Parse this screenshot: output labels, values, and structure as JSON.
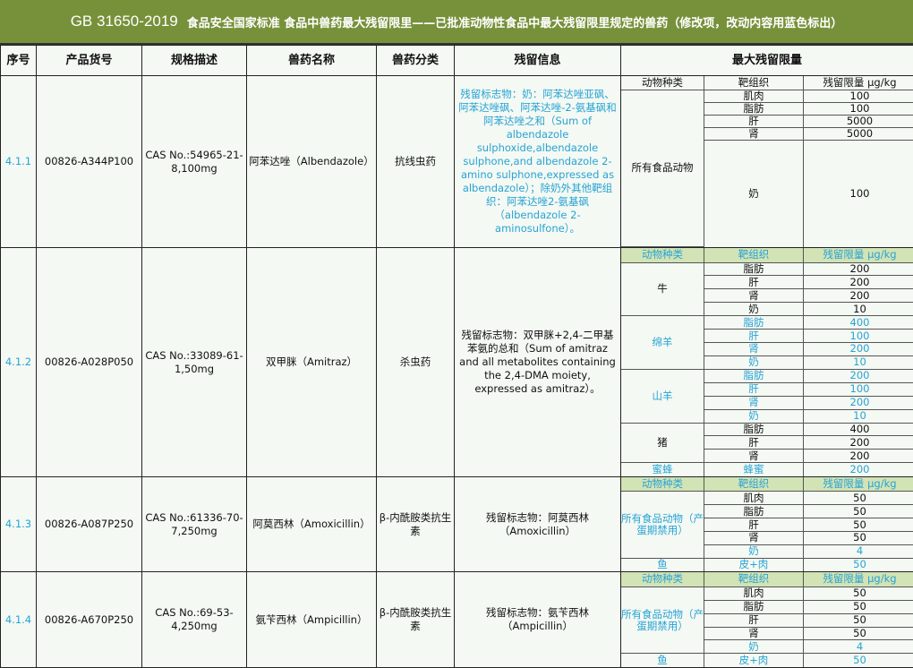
{
  "title": {
    "code": "GB 31650-2019",
    "text": "食品安全国家标准 食品中兽药最大残留限里——已批准动物性食品中最大残留限里规定的兽药（修改项，改动内容用蓝色标出）"
  },
  "headers": [
    "序号",
    "产品货号",
    "规格描述",
    "兽药名称",
    "兽药分类",
    "残留信息",
    "最大残留限量"
  ],
  "mrl_headers": [
    "动物种类",
    "靶组织",
    "残留限量 μg/kg"
  ],
  "colors": {
    "title_bg": "#77913a",
    "blue_text": "#27a3d5",
    "subheader_bg": "#d2e3b5"
  },
  "rows": [
    {
      "seq": "4.1.1",
      "product_no": "00826-A344P100",
      "spec": "CAS No.:54965-21-8,100mg",
      "drug_name": "阿苯达唑（Albendazole）",
      "category": "抗线虫药",
      "residue_info": "残留标志物：奶：阿苯达唑亚砜、阿苯达唑砜、阿苯达唑-2-氨基砜和阿苯达唑之和（Sum of albendazole sulphoxide,albendazole sulphone,and albendazole 2-amino sulphone,expressed as albendazole）；除奶外其他靶组织：阿苯达唑2-氨基砜（albendazole 2-aminosulfone）。",
      "residue_blue": true,
      "mrl": {
        "header_green": false,
        "groups": [
          {
            "animal": "所有食品动物",
            "blue": false,
            "items": [
              {
                "tissue": "肌肉",
                "value": "100",
                "blue": false
              },
              {
                "tissue": "脂肪",
                "value": "100",
                "blue": false
              },
              {
                "tissue": "肝",
                "value": "5000",
                "blue": false
              },
              {
                "tissue": "肾",
                "value": "5000",
                "blue": false
              },
              {
                "tissue": "奶",
                "value": "100",
                "blue": false
              }
            ]
          }
        ]
      }
    },
    {
      "seq": "4.1.2",
      "product_no": "00826-A028P050",
      "spec": "CAS No.:33089-61-1,50mg",
      "drug_name": "双甲脒（Amitraz）",
      "category": "杀虫药",
      "residue_info": "残留标志物：双甲脒+2,4-二甲基苯氨的总和（Sum of amitraz and all metabolites containing the 2,4-DMA moiety, expressed as amitraz）。",
      "residue_blue": false,
      "mrl": {
        "header_green": true,
        "groups": [
          {
            "animal": "牛",
            "blue": false,
            "items": [
              {
                "tissue": "脂肪",
                "value": "200",
                "blue": false
              },
              {
                "tissue": "肝",
                "value": "200",
                "blue": false
              },
              {
                "tissue": "肾",
                "value": "200",
                "blue": false
              },
              {
                "tissue": "奶",
                "value": "10",
                "blue": false
              }
            ]
          },
          {
            "animal": "绵羊",
            "blue": true,
            "items": [
              {
                "tissue": "脂肪",
                "value": "400",
                "blue": true
              },
              {
                "tissue": "肝",
                "value": "100",
                "blue": true
              },
              {
                "tissue": "肾",
                "value": "200",
                "blue": true
              },
              {
                "tissue": "奶",
                "value": "10",
                "blue": true
              }
            ]
          },
          {
            "animal": "山羊",
            "blue": true,
            "items": [
              {
                "tissue": "脂肪",
                "value": "200",
                "blue": true
              },
              {
                "tissue": "肝",
                "value": "100",
                "blue": true
              },
              {
                "tissue": "肾",
                "value": "200",
                "blue": true
              },
              {
                "tissue": "奶",
                "value": "10",
                "blue": true
              }
            ]
          },
          {
            "animal": "猪",
            "blue": false,
            "items": [
              {
                "tissue": "脂肪",
                "value": "400",
                "blue": false
              },
              {
                "tissue": "肝",
                "value": "200",
                "blue": false
              },
              {
                "tissue": "肾",
                "value": "200",
                "blue": false
              }
            ]
          },
          {
            "animal": "蜜蜂",
            "blue": true,
            "items": [
              {
                "tissue": "蜂蜜",
                "value": "200",
                "blue": true
              }
            ]
          }
        ]
      }
    },
    {
      "seq": "4.1.3",
      "product_no": "00826-A087P250",
      "spec": "CAS No.:61336-70-7,250mg",
      "drug_name": "阿莫西林（Amoxicillin）",
      "category": "β-内酰胺类抗生素",
      "residue_info": "残留标志物：阿莫西林（Amoxicillin）",
      "residue_blue": false,
      "mrl": {
        "header_green": true,
        "groups": [
          {
            "animal": "所有食品动物（产蛋期禁用）",
            "blue": true,
            "items": [
              {
                "tissue": "肌肉",
                "value": "50",
                "blue": false
              },
              {
                "tissue": "脂肪",
                "value": "50",
                "blue": false
              },
              {
                "tissue": "肝",
                "value": "50",
                "blue": false
              },
              {
                "tissue": "肾",
                "value": "50",
                "blue": false
              },
              {
                "tissue": "奶",
                "value": "4",
                "blue": true
              }
            ]
          },
          {
            "animal": "鱼",
            "blue": true,
            "items": [
              {
                "tissue": "皮+肉",
                "value": "50",
                "blue": true
              }
            ]
          }
        ]
      }
    },
    {
      "seq": "4.1.4",
      "product_no": "00826-A670P250",
      "spec": "CAS No.:69-53-4,250mg",
      "drug_name": "氨苄西林（Ampicillin）",
      "category": "β-内酰胺类抗生素",
      "residue_info": "残留标志物：氨苄西林（Ampicillin）",
      "residue_blue": false,
      "mrl": {
        "header_green": true,
        "groups": [
          {
            "animal": "所有食品动物（产蛋期禁用）",
            "blue": true,
            "items": [
              {
                "tissue": "肌肉",
                "value": "50",
                "blue": false
              },
              {
                "tissue": "脂肪",
                "value": "50",
                "blue": false
              },
              {
                "tissue": "肝",
                "value": "50",
                "blue": false
              },
              {
                "tissue": "肾",
                "value": "50",
                "blue": false
              },
              {
                "tissue": "奶",
                "value": "4",
                "blue": true
              }
            ]
          },
          {
            "animal": "鱼",
            "blue": true,
            "items": [
              {
                "tissue": "皮+肉",
                "value": "50",
                "blue": true
              }
            ]
          }
        ]
      }
    }
  ]
}
